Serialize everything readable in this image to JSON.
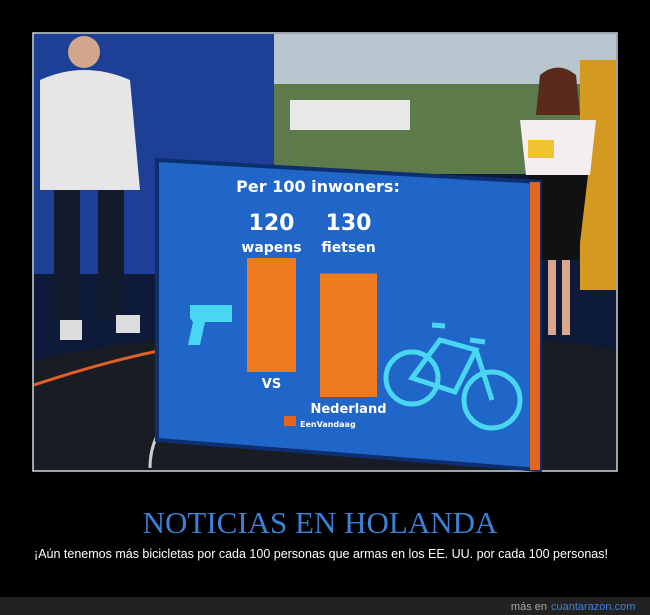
{
  "chart_data": {
    "type": "bar",
    "title": "Per 100 inwoners:",
    "categories": [
      "VS",
      "Nederland"
    ],
    "values": [
      120,
      130
    ],
    "units": [
      "wapens",
      "fietsen"
    ],
    "color": "#f07a1e",
    "logo": "EenVandaag"
  },
  "poster": {
    "title": "NOTICIAS EN HOLANDA",
    "caption": "¡Aún tenemos más bicicletas por cada 100 personas que armas en los EE. UU. por cada 100 personas!",
    "footer_prefix": "más en",
    "footer_link": "cuantarazon.com"
  }
}
